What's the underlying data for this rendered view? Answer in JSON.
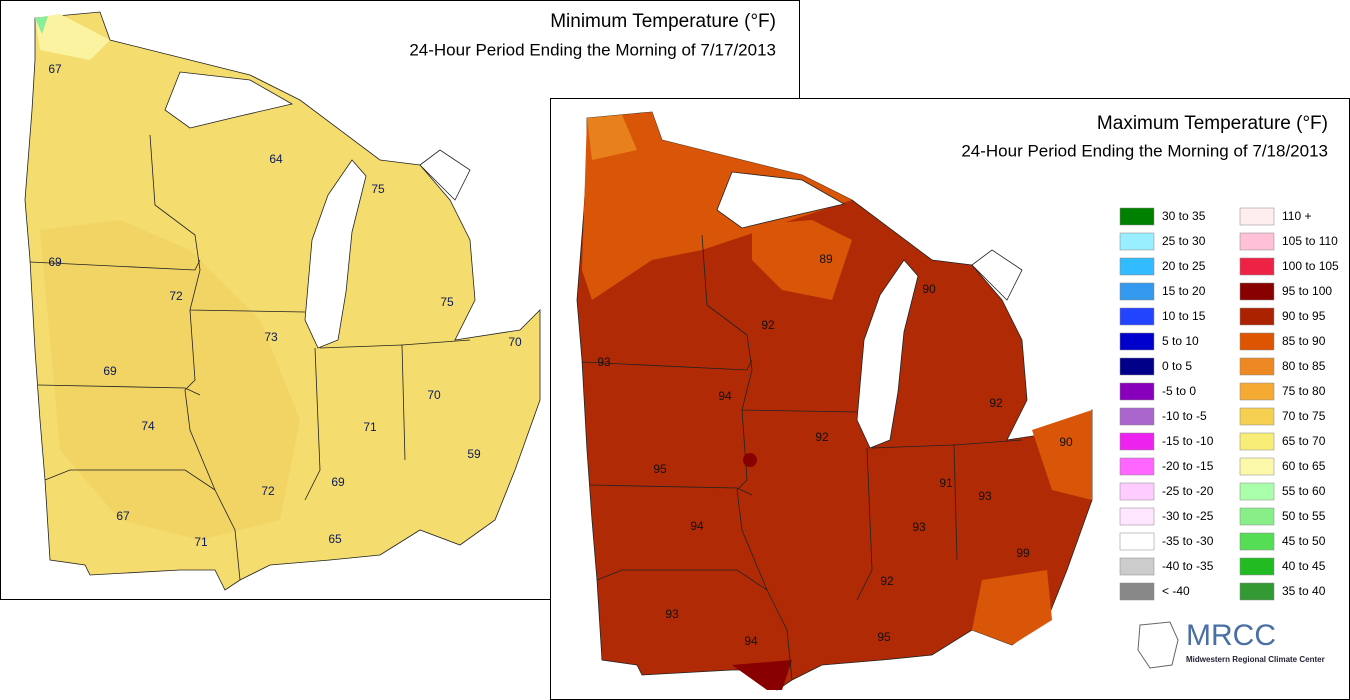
{
  "left_map": {
    "title": "Minimum Temperature (°F)",
    "subtitle": "24-Hour Period Ending the Morning of 7/17/2013",
    "labels": [
      "67",
      "64",
      "75",
      "69",
      "72",
      "75",
      "73",
      "70",
      "69",
      "70",
      "74",
      "71",
      "59",
      "69",
      "72",
      "67",
      "65",
      "71"
    ]
  },
  "right_map": {
    "title": "Maximum Temperature (°F)",
    "subtitle": "24-Hour Period Ending the Morning of 7/18/2013",
    "labels": [
      "89",
      "90",
      "92",
      "93",
      "94",
      "92",
      "92",
      "90",
      "95",
      "91",
      "93",
      "94",
      "93",
      "99",
      "92",
      "93",
      "95",
      "94"
    ]
  },
  "legend": {
    "left_column": [
      {
        "label": "30 to 35",
        "color": "#008000"
      },
      {
        "label": "25 to 30",
        "color": "#99eeff"
      },
      {
        "label": "20 to 25",
        "color": "#33bbff"
      },
      {
        "label": "15 to 20",
        "color": "#3399ee"
      },
      {
        "label": "10 to 15",
        "color": "#2244ff"
      },
      {
        "label": "5 to 10",
        "color": "#0000cc"
      },
      {
        "label": "0 to 5",
        "color": "#000088"
      },
      {
        "label": "-5 to 0",
        "color": "#8800bb"
      },
      {
        "label": "-10 to -5",
        "color": "#aa66cc"
      },
      {
        "label": "-15 to -10",
        "color": "#ee22ee"
      },
      {
        "label": "-20 to -15",
        "color": "#ff66ff"
      },
      {
        "label": "-25 to -20",
        "color": "#ffccff"
      },
      {
        "label": "-30 to -25",
        "color": "#ffe6ff"
      },
      {
        "label": "-35 to -30",
        "color": "#ffffff"
      },
      {
        "label": "-40 to -35",
        "color": "#cccccc"
      },
      {
        "label": "< -40",
        "color": "#888888"
      }
    ],
    "right_column": [
      {
        "label": "110 +",
        "color": "#ffeef0"
      },
      {
        "label": "105 to 110",
        "color": "#ffc0d8"
      },
      {
        "label": "100 to 105",
        "color": "#ee2244"
      },
      {
        "label": "95 to 100",
        "color": "#880000"
      },
      {
        "label": "90 to 95",
        "color": "#aa2200"
      },
      {
        "label": "85 to 90",
        "color": "#dd5500"
      },
      {
        "label": "80 to 85",
        "color": "#ee8822"
      },
      {
        "label": "75 to 80",
        "color": "#f5aa33"
      },
      {
        "label": "70 to 75",
        "color": "#f5d050"
      },
      {
        "label": "65 to 70",
        "color": "#f8ee77"
      },
      {
        "label": "60 to 65",
        "color": "#fbf8aa"
      },
      {
        "label": "55 to 60",
        "color": "#aaffaa"
      },
      {
        "label": "50 to 55",
        "color": "#88ee88"
      },
      {
        "label": "45 to 50",
        "color": "#55dd55"
      },
      {
        "label": "40 to 45",
        "color": "#22bb22"
      },
      {
        "label": "35 to 40",
        "color": "#339933"
      }
    ]
  },
  "logo": {
    "name": "MRCC",
    "subtitle": "Midwestern Regional Climate Center"
  }
}
